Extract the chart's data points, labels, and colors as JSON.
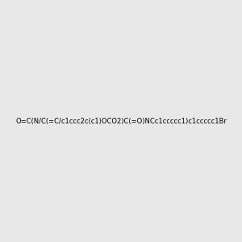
{
  "smiles": "O=C(N/C(=C/c1ccc2c(c1)OCO2)C(=O)NCc1ccccc1)c1ccccc1Br",
  "background_color": "#e8e8e8",
  "figsize": [
    3.0,
    3.0
  ],
  "dpi": 100
}
